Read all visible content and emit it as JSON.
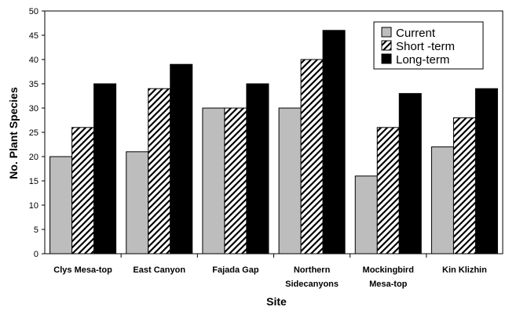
{
  "chart_data": {
    "type": "bar",
    "categories": [
      [
        "Clys Mesa-top"
      ],
      [
        "East Canyon"
      ],
      [
        "Fajada Gap"
      ],
      [
        "Northern",
        "Sidecanyons"
      ],
      [
        "Mockingbird",
        "Mesa-top"
      ],
      [
        "Kin Klizhin"
      ]
    ],
    "series": [
      {
        "name": "Current",
        "values": [
          20,
          21,
          30,
          30,
          16,
          22
        ],
        "fill": "#bdbdbd"
      },
      {
        "name": "Short -term",
        "values": [
          26,
          34,
          30,
          40,
          26,
          28
        ],
        "fill": "hatch"
      },
      {
        "name": "Long-term",
        "values": [
          35,
          39,
          35,
          46,
          33,
          34
        ],
        "fill": "#000000"
      }
    ],
    "xlabel": "Site",
    "ylabel": "No. Plant Species",
    "ylim": [
      0,
      50
    ],
    "yticks": [
      0,
      5,
      10,
      15,
      20,
      25,
      30,
      35,
      40,
      45,
      50
    ],
    "grid": false,
    "legend_position": "top-right"
  }
}
